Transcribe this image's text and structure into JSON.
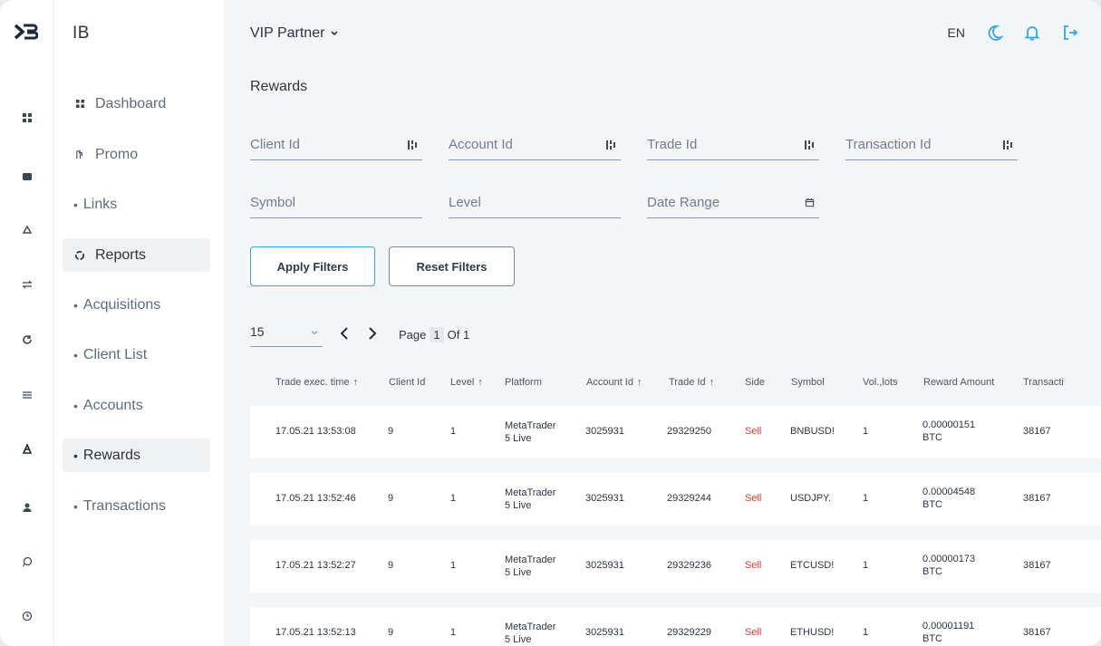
{
  "app": {
    "brand": "IB"
  },
  "header": {
    "partner_select": "VIP Partner",
    "language": "EN"
  },
  "sidebar": {
    "items": [
      {
        "label": "Dashboard"
      },
      {
        "label": "Promo"
      },
      {
        "label": "Links"
      },
      {
        "label": "Reports"
      },
      {
        "label": "Acquisitions"
      },
      {
        "label": "Client List"
      },
      {
        "label": "Accounts"
      },
      {
        "label": "Rewards"
      },
      {
        "label": "Transactions"
      }
    ]
  },
  "page": {
    "title": "Rewards"
  },
  "filters": {
    "client_id": "Client Id",
    "account_id": "Account Id",
    "trade_id": "Trade Id",
    "transaction_id": "Transaction Id",
    "symbol": "Symbol",
    "level": "Level",
    "date_range": "Date Range",
    "apply_label": "Apply Filters",
    "reset_label": "Reset Filters"
  },
  "pagination": {
    "per_page": "15",
    "page_label": "Page",
    "current_page": "1",
    "of_label": "Of 1"
  },
  "table": {
    "headers": [
      "Trade exec. time",
      "Client Id",
      "Level",
      "Platform",
      "Account Id",
      "Trade Id",
      "Side",
      "Symbol",
      "Vol.,lots",
      "Reward Amount",
      "Transacti"
    ],
    "rows": [
      {
        "time": "17.05.21 13:53:08",
        "client_id": "9",
        "level": "1",
        "platform_1": "MetaTrader",
        "platform_2": "5 Live",
        "account_id": "3025931",
        "trade_id": "29329250",
        "side": "Sell",
        "symbol": "BNBUSD!",
        "vol": "1",
        "reward_1": "0.00000151",
        "reward_2": "BTC",
        "transaction": "38167"
      },
      {
        "time": "17.05.21 13:52:46",
        "client_id": "9",
        "level": "1",
        "platform_1": "MetaTrader",
        "platform_2": "5 Live",
        "account_id": "3025931",
        "trade_id": "29329244",
        "side": "Sell",
        "symbol": "USDJPY.",
        "vol": "1",
        "reward_1": "0.00004548",
        "reward_2": "BTC",
        "transaction": "38167"
      },
      {
        "time": "17.05.21 13:52:27",
        "client_id": "9",
        "level": "1",
        "platform_1": "MetaTrader",
        "platform_2": "5 Live",
        "account_id": "3025931",
        "trade_id": "29329236",
        "side": "Sell",
        "symbol": "ETCUSD!",
        "vol": "1",
        "reward_1": "0.00000173",
        "reward_2": "BTC",
        "transaction": "38167"
      },
      {
        "time": "17.05.21 13:52:13",
        "client_id": "9",
        "level": "1",
        "platform_1": "MetaTrader",
        "platform_2": "5 Live",
        "account_id": "3025931",
        "trade_id": "29329229",
        "side": "Sell",
        "symbol": "ETHUSD!",
        "vol": "1",
        "reward_1": "0.00001191",
        "reward_2": "BTC",
        "transaction": "38167"
      }
    ]
  },
  "colors": {
    "accent": "#2ea8e6",
    "sell": "#e53935"
  }
}
